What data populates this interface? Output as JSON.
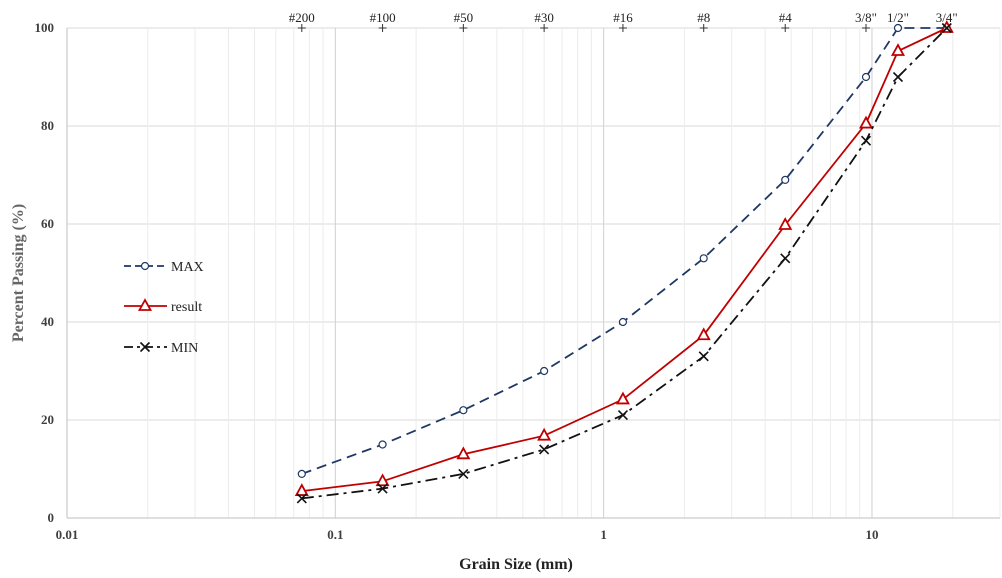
{
  "chart_data": {
    "type": "line",
    "xscale": "log",
    "xlim": [
      0.01,
      30
    ],
    "ylim": [
      0,
      100
    ],
    "xlabel": "Grain Size (mm)",
    "ylabel": "Percent Passing (%)",
    "x_ticks": [
      0.01,
      0.1,
      1,
      10
    ],
    "x_tick_labels": [
      "0.01",
      "0.1",
      "1",
      "10"
    ],
    "y_ticks": [
      0,
      20,
      40,
      60,
      80,
      100
    ],
    "y_tick_labels": [
      "0",
      "20",
      "40",
      "60",
      "80",
      "100"
    ],
    "grid": true,
    "legend_position": "left",
    "sieves": [
      {
        "label": "#200",
        "size": 0.075
      },
      {
        "label": "#100",
        "size": 0.15
      },
      {
        "label": "#50",
        "size": 0.3
      },
      {
        "label": "#30",
        "size": 0.6
      },
      {
        "label": "#16",
        "size": 1.18
      },
      {
        "label": "#8",
        "size": 2.36
      },
      {
        "label": "#4",
        "size": 4.75
      },
      {
        "label": "3/8\"",
        "size": 9.5
      },
      {
        "label": "1/2\"",
        "size": 12.5
      },
      {
        "label": "3/4\"",
        "size": 19
      }
    ],
    "series": [
      {
        "name": "MAX",
        "color": "#1f3864",
        "dash": "10,6",
        "marker": "circle",
        "points": [
          [
            0.075,
            9
          ],
          [
            0.15,
            15
          ],
          [
            0.3,
            22
          ],
          [
            0.6,
            30
          ],
          [
            1.18,
            40
          ],
          [
            2.36,
            53
          ],
          [
            4.75,
            69
          ],
          [
            9.5,
            90
          ],
          [
            12.5,
            100
          ],
          [
            19,
            100
          ]
        ]
      },
      {
        "name": "result",
        "color": "#c00000",
        "dash": "",
        "marker": "triangle",
        "points": [
          [
            0.075,
            5.5
          ],
          [
            0.15,
            7.5
          ],
          [
            0.3,
            13
          ],
          [
            0.6,
            16.8
          ],
          [
            1.18,
            24.2
          ],
          [
            2.36,
            37.3
          ],
          [
            4.75,
            59.8
          ],
          [
            9.5,
            80.5
          ],
          [
            12.5,
            95.3
          ],
          [
            19,
            100
          ]
        ]
      },
      {
        "name": "MIN",
        "color": "#111111",
        "dash": "12,5,3,5",
        "marker": "x",
        "points": [
          [
            0.075,
            4
          ],
          [
            0.15,
            6
          ],
          [
            0.3,
            9
          ],
          [
            0.6,
            14
          ],
          [
            1.18,
            21
          ],
          [
            2.36,
            33
          ],
          [
            4.75,
            53
          ],
          [
            9.5,
            77
          ],
          [
            12.5,
            90
          ],
          [
            19,
            100
          ]
        ]
      }
    ]
  }
}
